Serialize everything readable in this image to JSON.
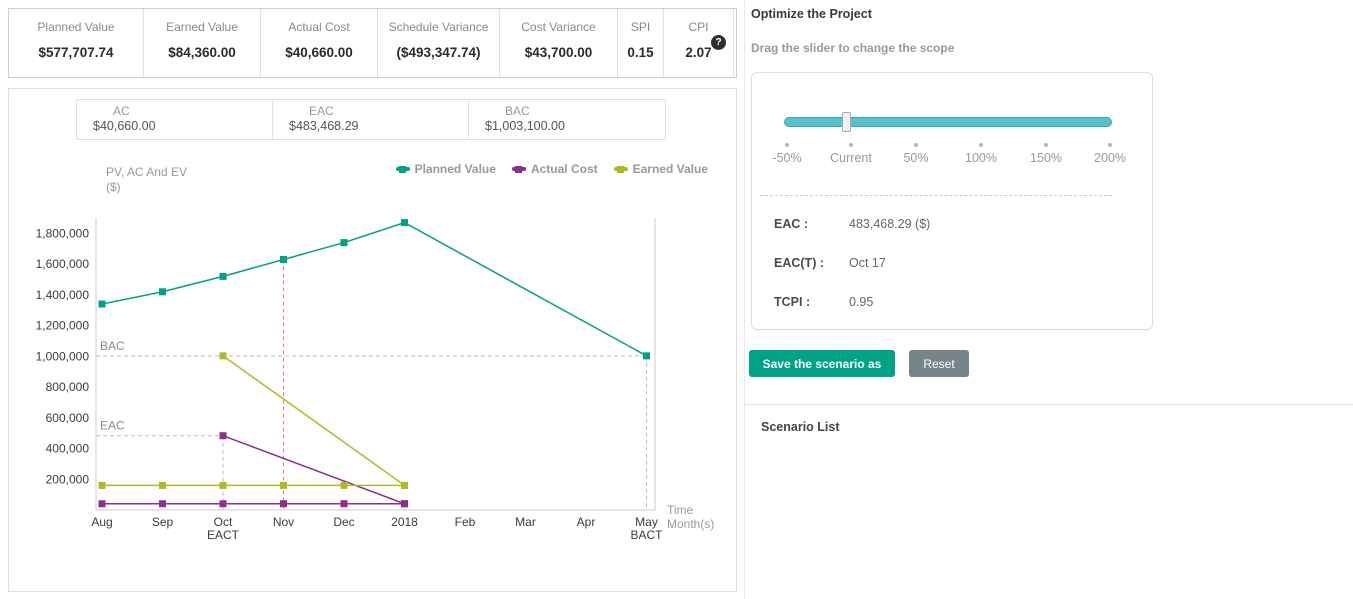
{
  "stats": {
    "items": [
      {
        "label": "Planned Value",
        "value": "$577,707.74"
      },
      {
        "label": "Earned Value",
        "value": "$84,360.00"
      },
      {
        "label": "Actual Cost",
        "value": "$40,660.00"
      },
      {
        "label": "Schedule Variance",
        "value": "($493,347.74)"
      },
      {
        "label": "Cost Variance",
        "value": "$43,700.00"
      },
      {
        "label": "SPI",
        "value": "0.15"
      },
      {
        "label": "CPI",
        "value": "2.07"
      }
    ],
    "help_icon": "?"
  },
  "substats": {
    "items": [
      {
        "label": "AC",
        "value": "$40,660.00"
      },
      {
        "label": "EAC",
        "value": "$483,468.29"
      },
      {
        "label": "BAC",
        "value": "$1,003,100.00"
      }
    ]
  },
  "chart_data": {
    "type": "line",
    "title": "PV, AC And EV",
    "ylabel_unit": "($)",
    "categories": [
      "Aug",
      "Sep",
      "Oct",
      "Nov",
      "Dec",
      "2018",
      "Feb",
      "Mar",
      "Apr",
      "May"
    ],
    "yticks": [
      200000,
      400000,
      600000,
      800000,
      1000000,
      1200000,
      1400000,
      1600000,
      1800000
    ],
    "ylim": [
      0,
      1900000
    ],
    "grid": false,
    "legend_position": "top-right",
    "series": [
      {
        "name": "Planned Value",
        "color": "#00a186",
        "values": [
          1340000,
          1420000,
          1520000,
          1630000,
          1740000,
          1870000,
          null,
          null,
          null,
          1003100
        ]
      },
      {
        "name": "Actual Cost",
        "color": "#8b2f8f",
        "values": [
          40660,
          40660,
          40660,
          40660,
          40660,
          40660,
          null,
          null,
          null,
          null
        ]
      },
      {
        "name": "Actual Cost Projection",
        "color": "#8b2f8f",
        "values": [
          null,
          null,
          483468,
          null,
          null,
          40660,
          null,
          null,
          null,
          null
        ]
      },
      {
        "name": "Earned Value",
        "color": "#b2b821",
        "values": [
          160000,
          160000,
          160000,
          160000,
          160000,
          160000,
          null,
          null,
          null,
          null
        ]
      },
      {
        "name": "Earned Value Projection",
        "color": "#b2b821",
        "values": [
          null,
          null,
          1003100,
          null,
          null,
          160000,
          null,
          null,
          null,
          null
        ]
      }
    ],
    "annotations": {
      "bac_label": "BAC",
      "bac_value": 1003100,
      "eac_label": "EAC",
      "eac_value": 483468,
      "eact_index": 2,
      "eact_label": "EACT",
      "bact_index": 9,
      "bact_label": "BACT",
      "current_index": 3,
      "current_top": 1630000,
      "time_label": "Time",
      "time_sublabel": "Month(s)"
    },
    "legend": [
      {
        "label": "Planned Value",
        "color": "#00a186"
      },
      {
        "label": "Actual Cost",
        "color": "#8b2f8f"
      },
      {
        "label": "Earned Value",
        "color": "#b2b821"
      }
    ]
  },
  "optimize": {
    "title": "Optimize the Project",
    "subtitle": "Drag the slider to change the scope",
    "slider_labels": [
      "-50%",
      "Current",
      "50%",
      "100%",
      "150%",
      "200%"
    ],
    "slider_value": "Current",
    "metrics": [
      {
        "label": "EAC :",
        "value": "483,468.29 ($)"
      },
      {
        "label": "EAC(T) :",
        "value": "Oct 17"
      },
      {
        "label": "TCPI :",
        "value": "0.95"
      }
    ],
    "save_button": "Save the scenario as",
    "reset_button": "Reset",
    "scenario_list_title": "Scenario List"
  },
  "colors": {
    "teal": "#00a186",
    "purple": "#8b2f8f",
    "olive": "#b2b821",
    "slider_track": "#54c3ce",
    "current_line": "#e57b7b"
  }
}
